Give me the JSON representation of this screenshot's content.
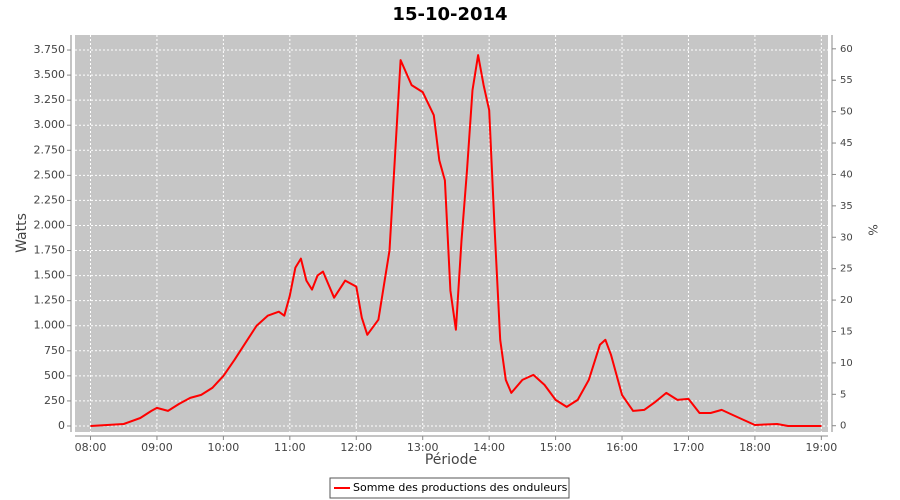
{
  "chart_data": {
    "type": "line",
    "title": "15-10-2014",
    "x_label": "Période",
    "y_label": "Watts",
    "y2_label": "%",
    "x": [
      "08:00",
      "08:30",
      "08:45",
      "08:55",
      "09:00",
      "09:10",
      "09:20",
      "09:30",
      "09:40",
      "09:50",
      "10:00",
      "10:10",
      "10:20",
      "10:30",
      "10:40",
      "10:50",
      "10:55",
      "11:00",
      "11:05",
      "11:10",
      "11:15",
      "11:20",
      "11:25",
      "11:30",
      "11:40",
      "11:50",
      "12:00",
      "12:05",
      "12:10",
      "12:20",
      "12:30",
      "12:40",
      "12:50",
      "13:00",
      "13:10",
      "13:15",
      "13:20",
      "13:25",
      "13:30",
      "13:35",
      "13:40",
      "13:45",
      "13:50",
      "13:55",
      "14:00",
      "14:05",
      "14:10",
      "14:15",
      "14:20",
      "14:30",
      "14:40",
      "14:50",
      "15:00",
      "15:10",
      "15:20",
      "15:30",
      "15:40",
      "15:45",
      "15:50",
      "16:00",
      "16:10",
      "16:20",
      "16:30",
      "16:40",
      "16:50",
      "17:00",
      "17:10",
      "17:20",
      "17:30",
      "17:40",
      "17:50",
      "18:00",
      "18:20",
      "18:30",
      "19:00"
    ],
    "series": [
      {
        "name": "Somme des productions des onduleurs",
        "color": "#ff0000",
        "values": [
          0,
          20,
          80,
          150,
          180,
          150,
          220,
          280,
          310,
          380,
          500,
          660,
          830,
          1000,
          1100,
          1140,
          1100,
          1300,
          1580,
          1670,
          1450,
          1360,
          1500,
          1540,
          1280,
          1450,
          1390,
          1080,
          910,
          1060,
          1750,
          3650,
          3400,
          3330,
          3100,
          2650,
          2450,
          1350,
          960,
          1850,
          2550,
          3350,
          3700,
          3400,
          3150,
          1950,
          860,
          460,
          330,
          460,
          510,
          410,
          260,
          190,
          260,
          460,
          810,
          860,
          710,
          310,
          150,
          160,
          240,
          330,
          260,
          270,
          130,
          130,
          160,
          110,
          60,
          10,
          20,
          0,
          0
        ]
      }
    ],
    "xlim": [
      "07:46",
      "19:06"
    ],
    "xticks": [
      "08:00",
      "09:00",
      "10:00",
      "11:00",
      "12:00",
      "13:00",
      "14:00",
      "15:00",
      "16:00",
      "17:00",
      "18:00",
      "19:00"
    ],
    "ylim": [
      -60,
      3900
    ],
    "yticks": [
      0,
      250,
      500,
      750,
      {
        "value": 1000,
        "label": "1.000"
      },
      {
        "value": 1250,
        "label": "1.250"
      },
      {
        "value": 1500,
        "label": "1.500"
      },
      {
        "value": 1750,
        "label": "1.750"
      },
      {
        "value": 2000,
        "label": "2.000"
      },
      {
        "value": 2250,
        "label": "2.250"
      },
      {
        "value": 2500,
        "label": "2.500"
      },
      {
        "value": 2750,
        "label": "2.750"
      },
      {
        "value": 3000,
        "label": "3.000"
      },
      {
        "value": 3250,
        "label": "3.250"
      },
      {
        "value": 3500,
        "label": "3.500"
      },
      {
        "value": 3750,
        "label": "3.750"
      }
    ],
    "y2lim": [
      -1,
      62.2
    ],
    "y2ticks": [
      0,
      5,
      10,
      15,
      20,
      25,
      30,
      35,
      40,
      45,
      50,
      55,
      60
    ],
    "grid": true
  }
}
